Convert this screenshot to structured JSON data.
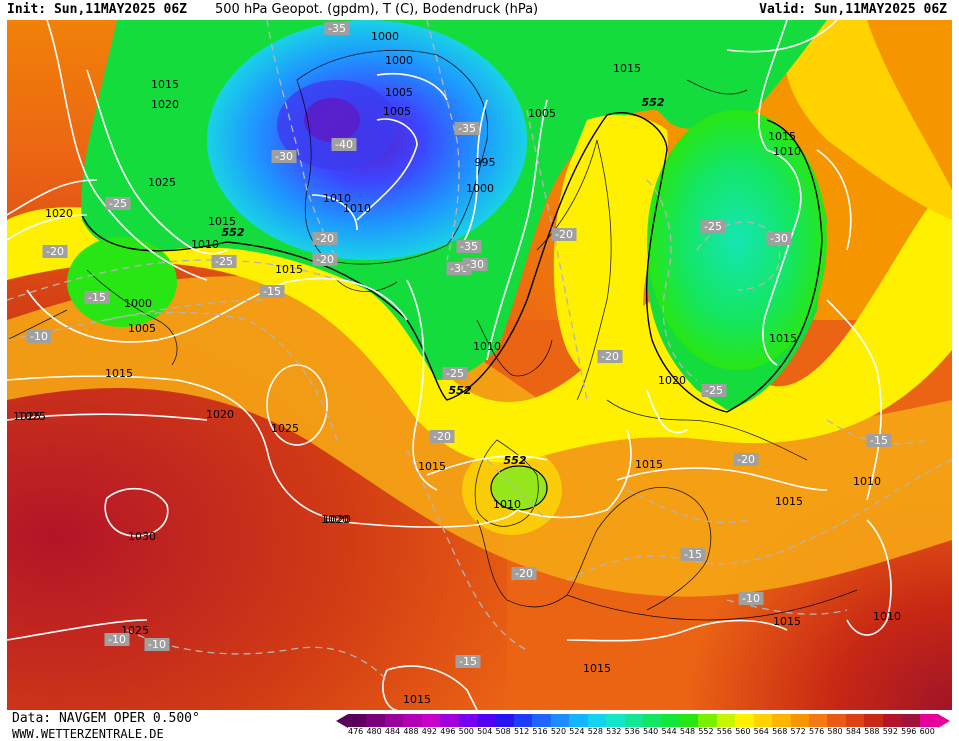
{
  "header": {
    "init": "Init: Sun,11MAY2025 06Z",
    "title": "500 hPa Geopot. (gpdm), T (C), Bodendruck (hPa)",
    "valid": "Valid: Sun,11MAY2025 06Z"
  },
  "footer": {
    "data_source": "Data: NAVGEM OPER 0.500°",
    "website": "WWW.WETTERZENTRALE.DE"
  },
  "colors": {
    "cold_core": "#5a1ec8",
    "blue": "#3c64ff",
    "cyan": "#19c8e6",
    "green": "#14dc3c",
    "yellow": "#fff000",
    "orange": "#f5a514",
    "red": "#d23c14",
    "dark_red": "#a01428",
    "isobar": "#ffffff",
    "isotherm": "#b4b4b4"
  },
  "legend": {
    "values": [
      "476",
      "480",
      "484",
      "488",
      "492",
      "496",
      "500",
      "504",
      "508",
      "512",
      "516",
      "520",
      "524",
      "528",
      "532",
      "536",
      "540",
      "544",
      "548",
      "552",
      "556",
      "560",
      "564",
      "568",
      "572",
      "576",
      "580",
      "584",
      "588",
      "592",
      "596",
      "600"
    ],
    "colors": [
      "#5a005a",
      "#78007a",
      "#9a009a",
      "#b400b4",
      "#c800c8",
      "#a000dc",
      "#7800f0",
      "#5000f5",
      "#2814f0",
      "#1e3cf5",
      "#1e64ff",
      "#1e8cff",
      "#14b4ff",
      "#14d2f0",
      "#14e6c8",
      "#14e696",
      "#14e664",
      "#14e63c",
      "#28e614",
      "#78f000",
      "#c8f500",
      "#fff000",
      "#ffd200",
      "#ffb400",
      "#f59600",
      "#f57814",
      "#eb5a14",
      "#dc4114",
      "#c82814",
      "#b41428",
      "#a0143c",
      "#e8009a"
    ]
  },
  "map": {
    "isobar_labels": [
      {
        "text": "1015"
      },
      {
        "text": "1020"
      },
      {
        "text": "1025"
      },
      {
        "text": "1020"
      },
      {
        "text": "1015"
      },
      {
        "text": "1010"
      },
      {
        "text": "1000"
      },
      {
        "text": "1005"
      },
      {
        "text": "1015"
      },
      {
        "text": "1025"
      },
      {
        "text": "1020"
      },
      {
        "text": "1030"
      },
      {
        "text": "1025"
      },
      {
        "text": "1020"
      },
      {
        "text": "1015"
      },
      {
        "text": "1015"
      },
      {
        "text": "1010"
      },
      {
        "text": "1000"
      },
      {
        "text": "1000"
      },
      {
        "text": "1005"
      },
      {
        "text": "1010"
      },
      {
        "text": "1010"
      },
      {
        "text": "1005"
      },
      {
        "text": "1000"
      },
      {
        "text": "995"
      },
      {
        "text": "1005"
      },
      {
        "text": "1025"
      },
      {
        "text": "1020"
      },
      {
        "text": "1015"
      },
      {
        "text": "1010"
      },
      {
        "text": "1015"
      },
      {
        "text": "1020"
      },
      {
        "text": "1015"
      },
      {
        "text": "1015"
      },
      {
        "text": "1010"
      },
      {
        "text": "1015"
      },
      {
        "text": "1010"
      },
      {
        "text": "1015"
      },
      {
        "text": "1015"
      },
      {
        "text": "1010"
      },
      {
        "text": "1015"
      },
      {
        "text": "1020"
      },
      {
        "text": "1025"
      },
      {
        "text": "1015"
      }
    ],
    "isotherm_labels": [
      {
        "text": "-35"
      },
      {
        "text": "-30"
      },
      {
        "text": "-40"
      },
      {
        "text": "-25"
      },
      {
        "text": "-20"
      },
      {
        "text": "-25"
      },
      {
        "text": "-15"
      },
      {
        "text": "-10"
      },
      {
        "text": "-15"
      },
      {
        "text": "-20"
      },
      {
        "text": "-35"
      },
      {
        "text": "-30"
      },
      {
        "text": "-25"
      },
      {
        "text": "-35"
      },
      {
        "text": "-30"
      },
      {
        "text": "-20"
      },
      {
        "text": "-20"
      },
      {
        "text": "-25"
      },
      {
        "text": "-30"
      },
      {
        "text": "-20"
      },
      {
        "text": "-25"
      },
      {
        "text": "-20"
      },
      {
        "text": "-20"
      },
      {
        "text": "-15"
      },
      {
        "text": "-15"
      },
      {
        "text": "-10"
      },
      {
        "text": "-10"
      },
      {
        "text": "-10"
      },
      {
        "text": "-15"
      },
      {
        "text": "-20"
      }
    ],
    "contour_552_labels": [
      {
        "text": "552"
      },
      {
        "text": "552"
      },
      {
        "text": "552"
      },
      {
        "text": "552"
      }
    ]
  }
}
